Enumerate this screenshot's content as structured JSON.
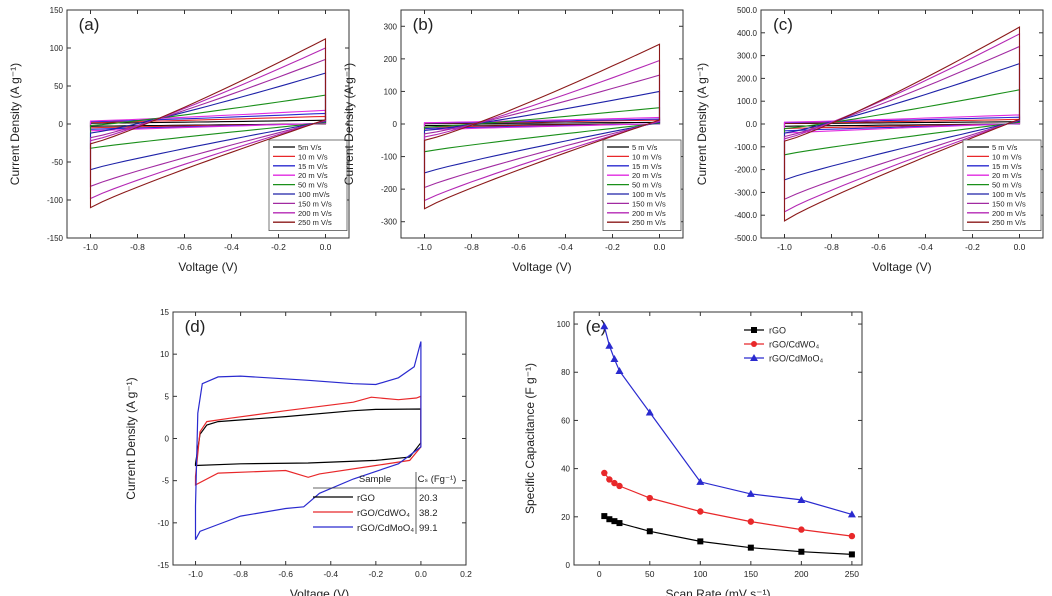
{
  "figure": {
    "panel_labels": [
      "(a)",
      "(b)",
      "(c)",
      "(d)",
      "(e)"
    ]
  },
  "legend_colors": {
    "5mVs": "#000000",
    "10mVs": "#e8282a",
    "15mVs": "#2a2acf",
    "20mVs": "#e12ae1",
    "50mVs": "#1a8f1a",
    "100mVs": "#1e22a8",
    "150mVs": "#a12aa1",
    "200mVs": "#b428b4",
    "250mVs": "#8b1a1a"
  },
  "chart_data": [
    {
      "panel": "(a)",
      "type": "line",
      "xlabel": "Voltage (V)",
      "ylabel": "Current Density (A g⁻¹)",
      "xlim": [
        -1.1,
        0.1
      ],
      "ylim": [
        -150,
        150
      ],
      "xticks": [
        "-1.0",
        "-0.8",
        "-0.6",
        "-0.4",
        "-0.2",
        "0.0"
      ],
      "yticks": [
        "-150",
        "-100",
        "-50",
        "0",
        "50",
        "100",
        "150"
      ],
      "legend": [
        "5m V/s",
        "10 m V/s",
        "15 m V/s",
        "20 m V/s",
        "50 m V/s",
        "100 mV/s",
        "150 m V/s",
        "200 m V/s",
        "250 m V/s"
      ],
      "series": [
        {
          "name": "5 mV/s",
          "color": "#000000",
          "upper_end": 5,
          "lower_start": -3,
          "upper_start": 1
        },
        {
          "name": "10 mV/s",
          "color": "#e8282a",
          "upper_end": 10,
          "lower_start": -5,
          "upper_start": 2
        },
        {
          "name": "15 mV/s",
          "color": "#2a2acf",
          "upper_end": 14,
          "lower_start": -7,
          "upper_start": 3
        },
        {
          "name": "20 mV/s",
          "color": "#e12ae1",
          "upper_end": 18,
          "lower_start": -9,
          "upper_start": 4
        },
        {
          "name": "50 mV/s",
          "color": "#1a8f1a",
          "upper_end": 38,
          "lower_start": -32,
          "upper_start": -2
        },
        {
          "name": "100 mV/s",
          "color": "#1e22a8",
          "upper_end": 67,
          "lower_start": -60,
          "upper_start": -12
        },
        {
          "name": "150 mV/s",
          "color": "#a12aa1",
          "upper_end": 85,
          "lower_start": -82,
          "upper_start": -18
        },
        {
          "name": "200 mV/s",
          "color": "#b428b4",
          "upper_end": 100,
          "lower_start": -98,
          "upper_start": -22
        },
        {
          "name": "250 mV/s",
          "color": "#8b1a1a",
          "upper_end": 112,
          "lower_start": -110,
          "upper_start": -26
        }
      ]
    },
    {
      "panel": "(b)",
      "type": "line",
      "xlabel": "Voltage (V)",
      "ylabel": "Current Density (A g⁻¹)",
      "xlim": [
        -1.1,
        0.1
      ],
      "ylim": [
        -350,
        350
      ],
      "xticks": [
        "-1.0",
        "-0.8",
        "-0.6",
        "-0.4",
        "-0.2",
        "0.0"
      ],
      "yticks": [
        "-300",
        "-200",
        "-100",
        "0",
        "100",
        "200",
        "300"
      ],
      "legend": [
        "5 m V/s",
        "10 m V/s",
        "15 m V/s",
        "20 m V/s",
        "50 m V/s",
        "100 m V/s",
        "150 m V/s",
        "200 m V/s",
        "250 m V/s"
      ],
      "series": [
        {
          "name": "5 mV/s",
          "color": "#000000",
          "upper_end": 5,
          "lower_start": -5,
          "upper_start": 1
        },
        {
          "name": "10 mV/s",
          "color": "#e8282a",
          "upper_end": 12,
          "lower_start": -10,
          "upper_start": 2
        },
        {
          "name": "15 mV/s",
          "color": "#2a2acf",
          "upper_end": 15,
          "lower_start": -14,
          "upper_start": 3
        },
        {
          "name": "20 mV/s",
          "color": "#e12ae1",
          "upper_end": 20,
          "lower_start": -18,
          "upper_start": 4
        },
        {
          "name": "50 mV/s",
          "color": "#1a8f1a",
          "upper_end": 50,
          "lower_start": -85,
          "upper_start": -10
        },
        {
          "name": "100 mV/s",
          "color": "#1e22a8",
          "upper_end": 100,
          "lower_start": -150,
          "upper_start": -20
        },
        {
          "name": "150 mV/s",
          "color": "#a12aa1",
          "upper_end": 150,
          "lower_start": -195,
          "upper_start": -30
        },
        {
          "name": "200 mV/s",
          "color": "#b428b4",
          "upper_end": 195,
          "lower_start": -235,
          "upper_start": -40
        },
        {
          "name": "250 mV/s",
          "color": "#8b1a1a",
          "upper_end": 245,
          "lower_start": -260,
          "upper_start": -50
        }
      ]
    },
    {
      "panel": "(c)",
      "type": "line",
      "xlabel": "Voltage (V)",
      "ylabel": "Current Density (A g⁻¹)",
      "xlim": [
        -1.1,
        0.1
      ],
      "ylim": [
        -500,
        500
      ],
      "xticks": [
        "-1.0",
        "-0.8",
        "-0.6",
        "-0.4",
        "-0.2",
        "0.0"
      ],
      "yticks": [
        "-500.0",
        "-400.0",
        "-300.0",
        "-200.0",
        "-100.0",
        "0.0",
        "100.0",
        "200.0",
        "300.0",
        "400.0",
        "500.0"
      ],
      "legend": [
        "5 m V/s",
        "10 m V/s",
        "15 m V/s",
        "20 m V/s",
        "50 m V/s",
        "100 m V/s",
        "150 m V/s",
        "200 m V/s",
        "250 m V/s"
      ],
      "series": [
        {
          "name": "5 mV/s",
          "color": "#000000",
          "upper_end": 10,
          "lower_start": -10,
          "upper_start": 2
        },
        {
          "name": "10 mV/s",
          "color": "#e8282a",
          "upper_end": 20,
          "lower_start": -20,
          "upper_start": 4
        },
        {
          "name": "15 mV/s",
          "color": "#2a2acf",
          "upper_end": 30,
          "lower_start": -30,
          "upper_start": 6
        },
        {
          "name": "20 mV/s",
          "color": "#e12ae1",
          "upper_end": 40,
          "lower_start": -40,
          "upper_start": 8
        },
        {
          "name": "50 mV/s",
          "color": "#1a8f1a",
          "upper_end": 150,
          "lower_start": -135,
          "upper_start": -20
        },
        {
          "name": "100 mV/s",
          "color": "#1e22a8",
          "upper_end": 265,
          "lower_start": -245,
          "upper_start": -40
        },
        {
          "name": "150 mV/s",
          "color": "#a12aa1",
          "upper_end": 340,
          "lower_start": -330,
          "upper_start": -55
        },
        {
          "name": "200 mV/s",
          "color": "#b428b4",
          "upper_end": 395,
          "lower_start": -385,
          "upper_start": -65
        },
        {
          "name": "250 mV/s",
          "color": "#8b1a1a",
          "upper_end": 425,
          "lower_start": -425,
          "upper_start": -75
        }
      ]
    },
    {
      "panel": "(d)",
      "type": "line",
      "xlabel": "Voltage (V)",
      "ylabel": "Current Density (A g⁻¹)",
      "xlim": [
        -1.1,
        0.2
      ],
      "ylim": [
        -15,
        15
      ],
      "xticks": [
        "-1.0",
        "-0.8",
        "-0.6",
        "-0.4",
        "-0.2",
        "0.0",
        "0.2"
      ],
      "yticks": [
        "-15",
        "-10",
        "-5",
        "0",
        "5",
        "10",
        "15"
      ],
      "table": {
        "header": [
          "Sample",
          "Cₛ (Fg⁻¹)"
        ],
        "rows": [
          [
            "rGO",
            "20.3"
          ],
          [
            "rGO/CdWO₄",
            "38.2"
          ],
          [
            "rGO/CdMoO₄",
            "99.1"
          ]
        ]
      },
      "series": [
        {
          "name": "rGO",
          "color": "#000000",
          "upper": [
            [
              -1.0,
              -3
            ],
            [
              -0.98,
              0.5
            ],
            [
              -0.95,
              1.6
            ],
            [
              -0.9,
              2.0
            ],
            [
              -0.6,
              2.6
            ],
            [
              -0.3,
              3.3
            ],
            [
              -0.2,
              3.45
            ],
            [
              0.0,
              3.5
            ]
          ],
          "lower": [
            [
              -1.0,
              -3.2
            ],
            [
              -0.8,
              -3.0
            ],
            [
              -0.5,
              -2.9
            ],
            [
              -0.2,
              -2.6
            ],
            [
              -0.05,
              -2.2
            ],
            [
              0.0,
              -0.5
            ]
          ]
        },
        {
          "name": "rGO/CdWO₄",
          "color": "#e8282a",
          "upper": [
            [
              -1.0,
              -4.5
            ],
            [
              -0.98,
              0.8
            ],
            [
              -0.95,
              2.0
            ],
            [
              -0.85,
              2.4
            ],
            [
              -0.6,
              3.3
            ],
            [
              -0.3,
              4.3
            ],
            [
              -0.22,
              4.9
            ],
            [
              -0.1,
              4.6
            ],
            [
              -0.02,
              4.8
            ],
            [
              0.0,
              5
            ]
          ],
          "lower": [
            [
              -1.0,
              -5.5
            ],
            [
              -0.9,
              -4.1
            ],
            [
              -0.6,
              -3.8
            ],
            [
              -0.5,
              -4.6
            ],
            [
              -0.45,
              -4.2
            ],
            [
              -0.2,
              -3.2
            ],
            [
              -0.05,
              -2.6
            ],
            [
              0.0,
              -1.0
            ]
          ]
        },
        {
          "name": "rGO/CdMoO₄",
          "color": "#2a2acf",
          "upper": [
            [
              -1.0,
              -8
            ],
            [
              -0.99,
              3
            ],
            [
              -0.97,
              6.5
            ],
            [
              -0.9,
              7.3
            ],
            [
              -0.8,
              7.4
            ],
            [
              -0.5,
              6.9
            ],
            [
              -0.3,
              6.5
            ],
            [
              -0.2,
              6.4
            ],
            [
              -0.1,
              7.2
            ],
            [
              -0.03,
              8.5
            ],
            [
              0.0,
              11.5
            ]
          ],
          "lower": [
            [
              -1.0,
              -12
            ],
            [
              -0.98,
              -11
            ],
            [
              -0.9,
              -10.2
            ],
            [
              -0.8,
              -9.2
            ],
            [
              -0.6,
              -8.3
            ],
            [
              -0.52,
              -8.1
            ],
            [
              -0.45,
              -6.5
            ],
            [
              -0.3,
              -4.8
            ],
            [
              -0.1,
              -3.0
            ],
            [
              0.0,
              -1.0
            ]
          ]
        }
      ]
    },
    {
      "panel": "(e)",
      "type": "line",
      "xlabel": "Scan Rate (mV s⁻¹)",
      "ylabel": "Specific Capacitance (F g⁻¹)",
      "xlim": [
        -25,
        260
      ],
      "ylim": [
        0,
        105
      ],
      "xticks": [
        "0",
        "50",
        "100",
        "150",
        "200",
        "250"
      ],
      "yticks": [
        "0",
        "20",
        "40",
        "60",
        "80",
        "100"
      ],
      "x": [
        5,
        10,
        15,
        20,
        50,
        100,
        150,
        200,
        250
      ],
      "series": [
        {
          "name": "rGO",
          "color": "#000000",
          "marker": "square",
          "values": [
            20.3,
            19.0,
            18.2,
            17.4,
            14.0,
            9.8,
            7.2,
            5.5,
            4.4
          ]
        },
        {
          "name": "rGO/CdWO₄",
          "color": "#e8282a",
          "marker": "circle",
          "values": [
            38.2,
            35.5,
            34.0,
            32.8,
            27.8,
            22.2,
            18.0,
            14.7,
            12.0
          ]
        },
        {
          "name": "rGO/CdMoO₄",
          "color": "#2a2acf",
          "marker": "triangle",
          "values": [
            99.1,
            91.0,
            85.5,
            80.5,
            63.3,
            34.5,
            29.5,
            27.0,
            21.0
          ]
        }
      ]
    }
  ]
}
